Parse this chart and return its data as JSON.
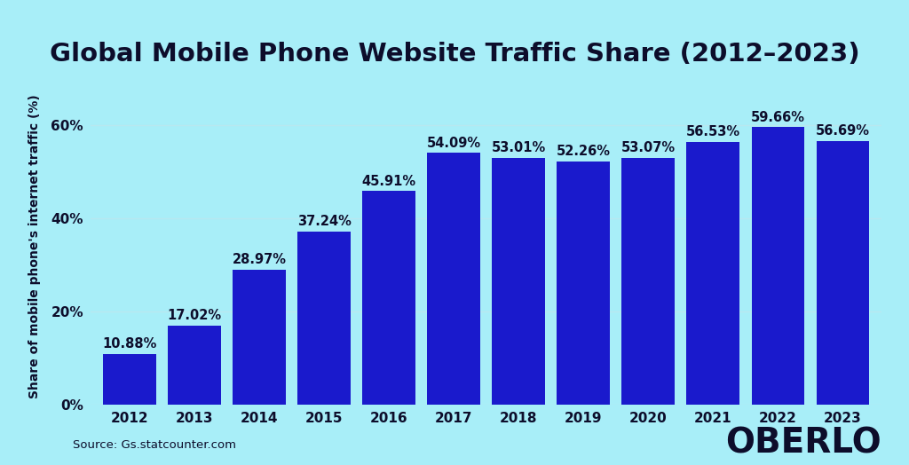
{
  "title": "Global Mobile Phone Website Traffic Share (2012–2023)",
  "ylabel": "Share of mobile phone's internet traffic (%)",
  "source": "Source: Gs.statcounter.com",
  "watermark": "OBERLO",
  "years": [
    2012,
    2013,
    2014,
    2015,
    2016,
    2017,
    2018,
    2019,
    2020,
    2021,
    2022,
    2023
  ],
  "values": [
    10.88,
    17.02,
    28.97,
    37.24,
    45.91,
    54.09,
    53.01,
    52.26,
    53.07,
    56.53,
    59.66,
    56.69
  ],
  "labels": [
    "10.88%",
    "17.02%",
    "28.97%",
    "37.24%",
    "45.91%",
    "54.09%",
    "53.01%",
    "52.26%",
    "53.07%",
    "56.53%",
    "59.66%",
    "56.69%"
  ],
  "bar_color": "#1a1acc",
  "background_color": "#a8eef8",
  "text_color": "#0d0d2b",
  "grid_color": "#b8e8f0",
  "title_fontsize": 21,
  "label_fontsize": 10.5,
  "ylabel_fontsize": 10,
  "tick_fontsize": 11,
  "source_fontsize": 9.5,
  "watermark_fontsize": 28,
  "ylim": [
    0,
    68
  ],
  "yticks": [
    0,
    20,
    40,
    60
  ],
  "ytick_labels": [
    "0%",
    "20%",
    "40%",
    "60%"
  ]
}
